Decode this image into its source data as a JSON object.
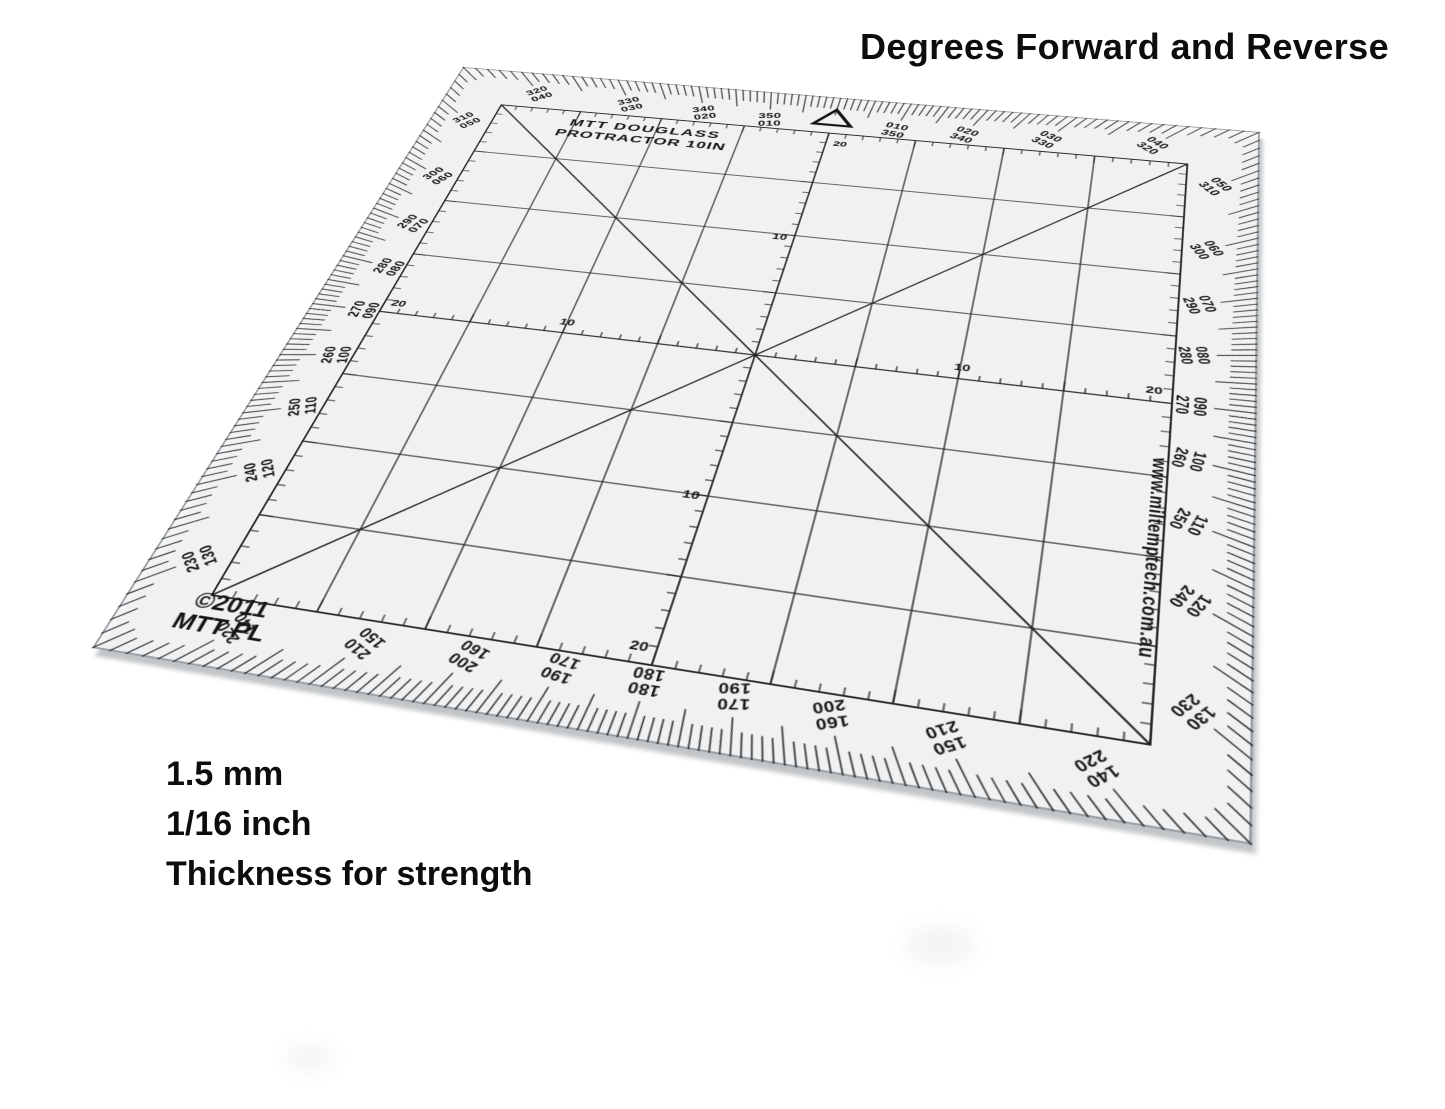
{
  "annotations": {
    "heading": "Degrees Forward and Reverse",
    "thickness_lines": [
      "1.5 mm",
      "1/16 inch",
      "Thickness for strength"
    ]
  },
  "protractor": {
    "brand_line1": "MTT DOUGLASS",
    "brand_line2": "PROTRACTOR 10IN",
    "copyright_line1": "©2011",
    "copyright_line2": "MTT PL",
    "website": "www.miltemptech.com.au",
    "north_marker": "triangle-icon",
    "ruler_labels": {
      "ten": "10",
      "twenty": "20"
    },
    "degree_labels": [
      {
        "bearing": 10,
        "forward": "010",
        "reverse": "350"
      },
      {
        "bearing": 20,
        "forward": "020",
        "reverse": "340"
      },
      {
        "bearing": 30,
        "forward": "030",
        "reverse": "330"
      },
      {
        "bearing": 40,
        "forward": "040",
        "reverse": "320"
      },
      {
        "bearing": 50,
        "forward": "050",
        "reverse": "310"
      },
      {
        "bearing": 60,
        "forward": "060",
        "reverse": "300"
      },
      {
        "bearing": 70,
        "forward": "070",
        "reverse": "290"
      },
      {
        "bearing": 80,
        "forward": "080",
        "reverse": "280"
      },
      {
        "bearing": 90,
        "forward": "090",
        "reverse": "270"
      },
      {
        "bearing": 100,
        "forward": "100",
        "reverse": "260"
      },
      {
        "bearing": 110,
        "forward": "110",
        "reverse": "250"
      },
      {
        "bearing": 120,
        "forward": "120",
        "reverse": "240"
      },
      {
        "bearing": 130,
        "forward": "130",
        "reverse": "230"
      },
      {
        "bearing": 140,
        "forward": "140",
        "reverse": "220"
      },
      {
        "bearing": 150,
        "forward": "150",
        "reverse": "210"
      },
      {
        "bearing": 160,
        "forward": "160",
        "reverse": "200"
      },
      {
        "bearing": 170,
        "forward": "170",
        "reverse": "190"
      },
      {
        "bearing": 180,
        "forward": "180",
        "reverse": "180"
      },
      {
        "bearing": 190,
        "forward": "190",
        "reverse": "170"
      },
      {
        "bearing": 200,
        "forward": "200",
        "reverse": "160"
      },
      {
        "bearing": 210,
        "forward": "210",
        "reverse": "150"
      },
      {
        "bearing": 220,
        "forward": "220",
        "reverse": "140"
      },
      {
        "bearing": 230,
        "forward": "230",
        "reverse": "130"
      },
      {
        "bearing": 240,
        "forward": "240",
        "reverse": "120"
      },
      {
        "bearing": 250,
        "forward": "250",
        "reverse": "110"
      },
      {
        "bearing": 260,
        "forward": "260",
        "reverse": "100"
      },
      {
        "bearing": 270,
        "forward": "270",
        "reverse": "090"
      },
      {
        "bearing": 280,
        "forward": "280",
        "reverse": "080"
      },
      {
        "bearing": 290,
        "forward": "290",
        "reverse": "070"
      },
      {
        "bearing": 300,
        "forward": "300",
        "reverse": "060"
      },
      {
        "bearing": 310,
        "forward": "310",
        "reverse": "050"
      },
      {
        "bearing": 320,
        "forward": "320",
        "reverse": "040"
      },
      {
        "bearing": 330,
        "forward": "330",
        "reverse": "030"
      },
      {
        "bearing": 340,
        "forward": "340",
        "reverse": "020"
      },
      {
        "bearing": 350,
        "forward": "350",
        "reverse": "010"
      }
    ]
  }
}
